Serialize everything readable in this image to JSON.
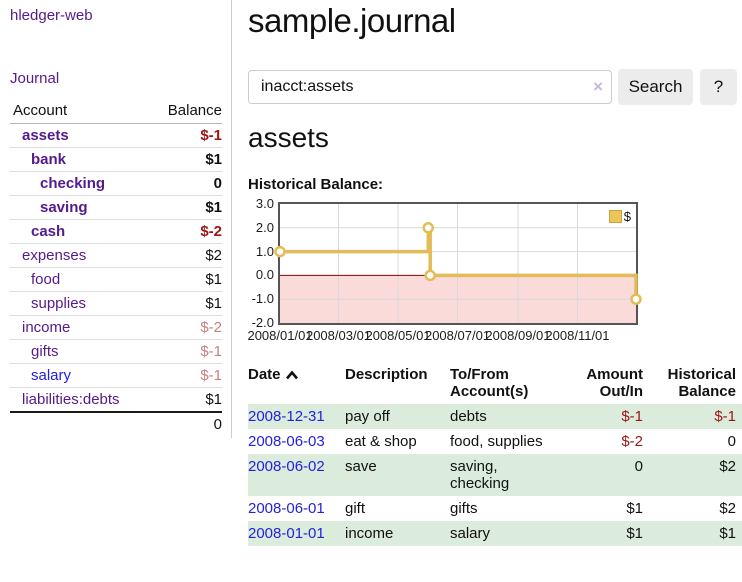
{
  "sidebar": {
    "brand": "hledger-web",
    "journal_label": "Journal",
    "accounts_table": {
      "headers": {
        "account": "Account",
        "balance": "Balance"
      },
      "rows": [
        {
          "name": "assets",
          "balance": "$-1",
          "depth": 1,
          "bold": true,
          "neg": "strong",
          "link_color": "purple"
        },
        {
          "name": "bank",
          "balance": "$1",
          "depth": 2,
          "bold": true,
          "neg": "none",
          "link_color": "purple"
        },
        {
          "name": "checking",
          "balance": "0",
          "depth": 3,
          "bold": true,
          "neg": "none",
          "link_color": "purple"
        },
        {
          "name": "saving",
          "balance": "$1",
          "depth": 3,
          "bold": true,
          "neg": "none",
          "link_color": "purple"
        },
        {
          "name": "cash",
          "balance": "$-2",
          "depth": 2,
          "bold": true,
          "neg": "strong",
          "link_color": "purple"
        },
        {
          "name": "expenses",
          "balance": "$2",
          "depth": 1,
          "bold": false,
          "neg": "none",
          "link_color": "purple"
        },
        {
          "name": "food",
          "balance": "$1",
          "depth": 2,
          "bold": false,
          "neg": "none",
          "link_color": "purple"
        },
        {
          "name": "supplies",
          "balance": "$1",
          "depth": 2,
          "bold": false,
          "neg": "none",
          "link_color": "purple"
        },
        {
          "name": "income",
          "balance": "$-2",
          "depth": 1,
          "bold": false,
          "neg": "soft",
          "link_color": "purple"
        },
        {
          "name": "gifts",
          "balance": "$-1",
          "depth": 2,
          "bold": false,
          "neg": "soft",
          "link_color": "purple"
        },
        {
          "name": "salary",
          "balance": "$-1",
          "depth": 2,
          "bold": false,
          "neg": "soft",
          "link_color": "blue"
        },
        {
          "name": "liabilities:debts",
          "balance": "$1",
          "depth": 1,
          "bold": false,
          "neg": "none",
          "link_color": "purple"
        }
      ],
      "total": "0"
    }
  },
  "main": {
    "title": "sample.journal",
    "search": {
      "value": "inacct:assets",
      "clear_icon": "×",
      "button_label": "Search",
      "help_label": "?"
    },
    "account_heading": "assets",
    "chart_label": "Historical Balance:"
  },
  "chart_data": {
    "type": "line",
    "step": true,
    "title": "Historical Balance",
    "legend": [
      {
        "label": "$"
      }
    ],
    "legend_position": "top-right",
    "grid": true,
    "ylim": [
      -2,
      3
    ],
    "y_ticks": [
      {
        "label": "3.0",
        "value": 3
      },
      {
        "label": "2.0",
        "value": 2
      },
      {
        "label": "1.0",
        "value": 1
      },
      {
        "label": "0.0",
        "value": 0
      },
      {
        "label": "-1.0",
        "value": -1
      },
      {
        "label": "-2.0",
        "value": -2
      }
    ],
    "x_domain_days": [
      0,
      365
    ],
    "x_ticks": [
      {
        "label": "2008/01/01",
        "day": 0
      },
      {
        "label": "2008/03/01",
        "day": 60
      },
      {
        "label": "2008/05/01",
        "day": 121
      },
      {
        "label": "2008/07/01",
        "day": 182
      },
      {
        "label": "2008/09/01",
        "day": 244
      },
      {
        "label": "2008/11/01",
        "day": 305
      }
    ],
    "series": [
      {
        "name": "$",
        "points": [
          {
            "date": "2008-01-01",
            "day": 0,
            "value": 1
          },
          {
            "date": "2008-06-01",
            "day": 152,
            "value": 2
          },
          {
            "date": "2008-06-03",
            "day": 154,
            "value": 0
          },
          {
            "date": "2008-12-31",
            "day": 365,
            "value": -1
          }
        ]
      }
    ]
  },
  "transactions": {
    "headers": {
      "date": "Date",
      "description": "Description",
      "tofrom": "To/From Account(s)",
      "amount": "Amount Out/In",
      "balance": "Historical Balance"
    },
    "rows": [
      {
        "date": "2008-12-31",
        "description": "pay off",
        "accounts": "debts",
        "amount": "$-1",
        "amount_neg": true,
        "balance": "$-1",
        "balance_neg": true
      },
      {
        "date": "2008-06-03",
        "description": "eat & shop",
        "accounts": "food, supplies",
        "amount": "$-2",
        "amount_neg": true,
        "balance": "0",
        "balance_neg": false
      },
      {
        "date": "2008-06-02",
        "description": "save",
        "accounts": "saving, checking",
        "amount": "0",
        "amount_neg": false,
        "balance": "$2",
        "balance_neg": false
      },
      {
        "date": "2008-06-01",
        "description": "gift",
        "accounts": "gifts",
        "amount": "$1",
        "amount_neg": false,
        "balance": "$2",
        "balance_neg": false
      },
      {
        "date": "2008-01-01",
        "description": "income",
        "accounts": "salary",
        "amount": "$1",
        "amount_neg": false,
        "balance": "$1",
        "balance_neg": false
      }
    ]
  },
  "colors": {
    "link_purple": "#551a8b",
    "link_blue": "#2222dd",
    "negative_strong": "#9e1414",
    "negative_soft": "#c98080",
    "row_highlight_green": "#dcecdc",
    "chart_line": "#e3bc57",
    "chart_marker_fill": "#ffffff",
    "chart_negative_region": "#fbdada",
    "chart_zero_line": "#8b0000",
    "chart_grid": "#dadada",
    "chart_border": "#555555",
    "button_bg": "#ececec"
  }
}
